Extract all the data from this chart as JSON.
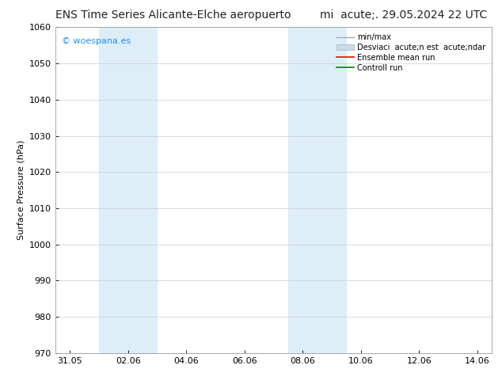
{
  "title_left": "ENS Time Series Alicante-Elche aeropuerto",
  "title_right": "mi  acute;. 29.05.2024 22 UTC",
  "ylabel": "Surface Pressure (hPa)",
  "ylim": [
    970,
    1060
  ],
  "yticks": [
    970,
    980,
    990,
    1000,
    1010,
    1020,
    1030,
    1040,
    1050,
    1060
  ],
  "xtick_labels": [
    "31.05",
    "02.06",
    "04.06",
    "06.06",
    "08.06",
    "10.06",
    "12.06",
    "14.06"
  ],
  "xtick_positions": [
    0,
    2,
    4,
    6,
    8,
    10,
    12,
    14
  ],
  "xlim": [
    -0.5,
    14.5
  ],
  "shade_bands": [
    {
      "xmin": 1.0,
      "xmax": 3.0,
      "color": "#ddeef8"
    },
    {
      "xmin": 7.5,
      "xmax": 9.5,
      "color": "#ddeef8"
    }
  ],
  "watermark_text": "© woespana.es",
  "watermark_color": "#1e90ff",
  "legend_line1": "min/max",
  "legend_line2": "Desviaci  acute;n est  acute;ndar",
  "legend_line3": "Ensemble mean run",
  "legend_line4": "Controll run",
  "legend_color1": "#aaaaaa",
  "legend_color2": "#c8dced",
  "legend_color3": "#ff0000",
  "legend_color4": "#008000",
  "bg_color": "#ffffff",
  "grid_color": "#cccccc",
  "title_fontsize": 10,
  "axis_fontsize": 8,
  "tick_fontsize": 8,
  "legend_fontsize": 7
}
